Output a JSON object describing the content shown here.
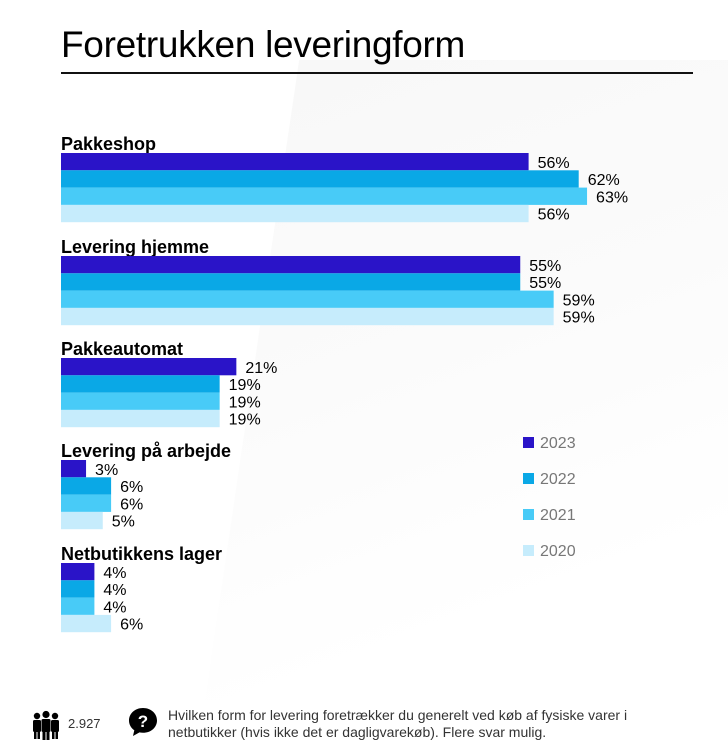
{
  "title": "Foretrukken leveringform",
  "footer": {
    "sample_size": "2.927",
    "question": "Hvilken form for levering foretrækker du generelt ved køb af fysiske varer i netbutikker (hvis ikke det er dagligvarekøb). Flere svar mulig."
  },
  "chart_data": {
    "type": "bar",
    "orientation": "horizontal",
    "categories": [
      "Pakkeshop",
      "Levering hjemme",
      "Pakkeautomat",
      "Levering på arbejde",
      "Netbutikkens lager"
    ],
    "series": [
      {
        "name": "2023",
        "color": "#2a14c8",
        "values": [
          56,
          55,
          21,
          3,
          4
        ]
      },
      {
        "name": "2022",
        "color": "#0aa8e6",
        "values": [
          62,
          55,
          19,
          6,
          4
        ]
      },
      {
        "name": "2021",
        "color": "#48cbf7",
        "values": [
          63,
          59,
          19,
          6,
          4
        ]
      },
      {
        "name": "2020",
        "color": "#c6ecfc",
        "values": [
          56,
          59,
          19,
          5,
          6
        ]
      }
    ],
    "value_suffix": "%",
    "legend_position": "right",
    "grid": false
  }
}
